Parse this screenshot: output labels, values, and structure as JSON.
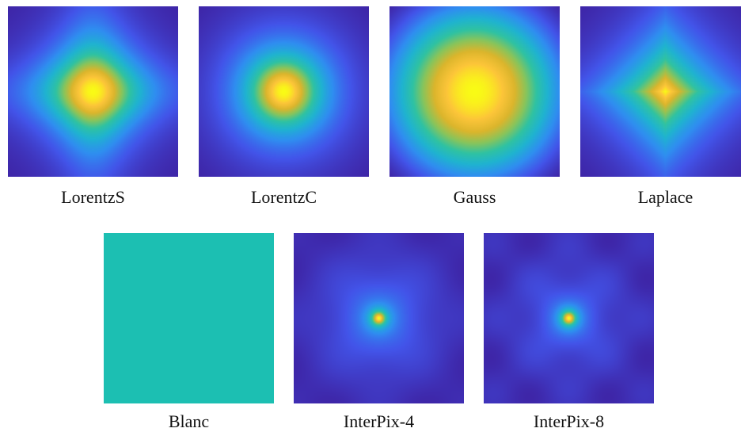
{
  "panels": [
    {
      "label": "LorentzS",
      "kernel": "lorentz-square"
    },
    {
      "label": "LorentzC",
      "kernel": "lorentz-circle"
    },
    {
      "label": "Gauss",
      "kernel": "gauss"
    },
    {
      "label": "Laplace",
      "kernel": "laplace"
    },
    {
      "label": "Blanc",
      "kernel": "flat"
    },
    {
      "label": "InterPix-4",
      "kernel": "interpix-4"
    },
    {
      "label": "InterPix-8",
      "kernel": "interpix-8"
    }
  ],
  "colormap": [
    "#3e26a8",
    "#4254e9",
    "#2f8ef0",
    "#1fb3d0",
    "#2fc2a2",
    "#8ac45a",
    "#dbb52c",
    "#fcc539",
    "#f9fb15"
  ],
  "flat_color": "#1cbfb2"
}
